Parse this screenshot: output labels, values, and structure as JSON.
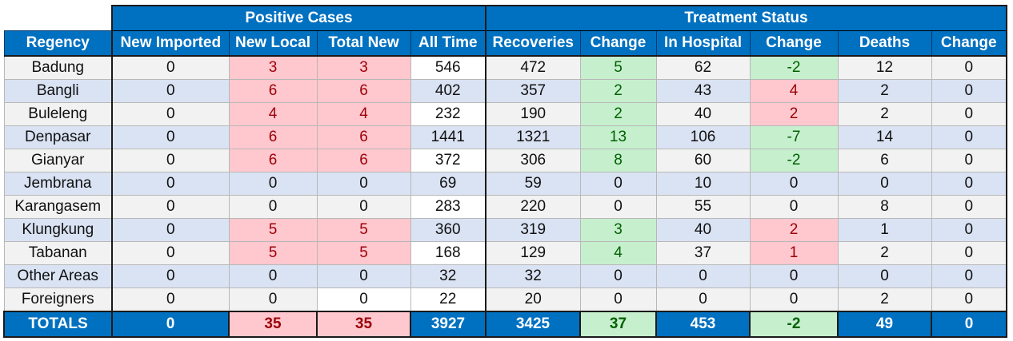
{
  "groups": {
    "positive_cases": "Positive Cases",
    "treatment_status": "Treatment Status"
  },
  "headers": [
    "Regency",
    "New Imported",
    "New Local",
    "Total New",
    "All Time",
    "Recoveries",
    "Change",
    "In Hospital",
    "Change",
    "Deaths",
    "Change"
  ],
  "rows": [
    [
      "Badung",
      "0",
      "3",
      "3",
      "546",
      "472",
      "5",
      "62",
      "-2",
      "12",
      "0"
    ],
    [
      "Bangli",
      "0",
      "6",
      "6",
      "402",
      "357",
      "2",
      "43",
      "4",
      "2",
      "0"
    ],
    [
      "Buleleng",
      "0",
      "4",
      "4",
      "232",
      "190",
      "2",
      "40",
      "2",
      "2",
      "0"
    ],
    [
      "Denpasar",
      "0",
      "6",
      "6",
      "1441",
      "1321",
      "13",
      "106",
      "-7",
      "14",
      "0"
    ],
    [
      "Gianyar",
      "0",
      "6",
      "6",
      "372",
      "306",
      "8",
      "60",
      "-2",
      "6",
      "0"
    ],
    [
      "Jembrana",
      "0",
      "0",
      "0",
      "69",
      "59",
      "0",
      "10",
      "0",
      "0",
      "0"
    ],
    [
      "Karangasem",
      "0",
      "0",
      "0",
      "283",
      "220",
      "0",
      "55",
      "0",
      "8",
      "0"
    ],
    [
      "Klungkung",
      "0",
      "5",
      "5",
      "360",
      "319",
      "3",
      "40",
      "2",
      "1",
      "0"
    ],
    [
      "Tabanan",
      "0",
      "5",
      "5",
      "168",
      "129",
      "4",
      "37",
      "1",
      "2",
      "0"
    ],
    [
      "Other Areas",
      "0",
      "0",
      "0",
      "32",
      "32",
      "0",
      "0",
      "0",
      "0",
      "0"
    ],
    [
      "Foreigners",
      "0",
      "0",
      "0",
      "22",
      "20",
      "0",
      "0",
      "0",
      "2",
      "0"
    ]
  ],
  "totals": [
    "TOTALS",
    "0",
    "35",
    "35",
    "3927",
    "3425",
    "37",
    "453",
    "-2",
    "49",
    "0"
  ],
  "colors": {
    "header_blue": "#0070C0",
    "increase_fill": "#ffc7ce",
    "increase_text": "#9c0006",
    "decrease_fill": "#c6efce",
    "decrease_text": "#006100",
    "row_alt": "#dae3f3",
    "row_base": "#f2f2f2"
  }
}
